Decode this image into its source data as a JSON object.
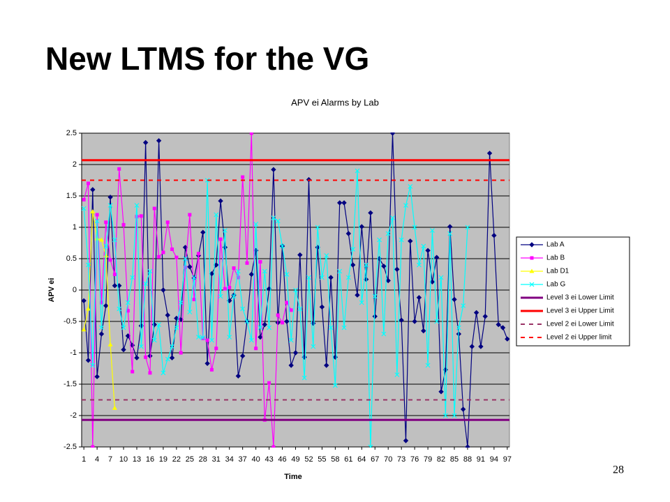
{
  "chart_data": {
    "type": "line",
    "slide_title": "New LTMS for the VG",
    "title": "APV ei Alarms by Lab",
    "xlabel": "Time",
    "ylabel": "APV ei",
    "page_number": "28",
    "categories": [
      1,
      null,
      null,
      4,
      null,
      null,
      7,
      null,
      null,
      10,
      null,
      null,
      13,
      null,
      null,
      16,
      null,
      null,
      19,
      null,
      null,
      22,
      null,
      null,
      25,
      null,
      null,
      28,
      null,
      null,
      31,
      null,
      null,
      34,
      null,
      null,
      37,
      null,
      null,
      40,
      null,
      null,
      43,
      null,
      null,
      46,
      null,
      null,
      49,
      null,
      null,
      52,
      null,
      null,
      55,
      null,
      null,
      58,
      null,
      null,
      61,
      null,
      null,
      64,
      null,
      null,
      67,
      null,
      null,
      70,
      null,
      null,
      73,
      null,
      null,
      76,
      null,
      null,
      79,
      null,
      null,
      82,
      null,
      null,
      85,
      null,
      null,
      88,
      null,
      null,
      91,
      null,
      null,
      94,
      null,
      null,
      97
    ],
    "ylim": [
      -2.5,
      2.5
    ],
    "yticks": [
      2.5,
      2,
      1.5,
      1,
      0.5,
      0,
      -0.5,
      -1,
      -1.5,
      -2,
      -2.5
    ],
    "grid": true,
    "legend": "right",
    "plot_background": "#c0c0c0",
    "series": [
      {
        "name": "Lab A",
        "color": "#000080",
        "marker": "diamond",
        "values": [
          -0.17,
          -1.12,
          1.6,
          -1.38,
          -0.7,
          -0.25,
          1.48,
          0.07,
          0.07,
          -0.95,
          -0.73,
          -0.88,
          -1.08,
          -0.57,
          2.35,
          -1.05,
          -0.55,
          2.38,
          0.0,
          -0.4,
          -1.08,
          -0.45,
          -0.47,
          0.68,
          0.37,
          0.19,
          0.55,
          0.92,
          -1.17,
          0.26,
          0.4,
          1.42,
          0.68,
          -0.17,
          -0.08,
          -1.37,
          -1.05,
          -0.5,
          0.25,
          0.63,
          -0.75,
          -0.55,
          0.02,
          1.92,
          -0.52,
          0.7,
          -0.5,
          -1.2,
          -1.0,
          0.56,
          -1.07,
          1.76,
          -0.53,
          0.68,
          -0.27,
          -1.2,
          0.2,
          -1.07,
          1.39,
          1.39,
          0.9,
          0.4,
          -0.08,
          1.01,
          0.17,
          1.23,
          -0.42,
          0.5,
          0.38,
          0.15,
          2.5,
          0.33,
          -0.48,
          -2.4,
          0.78,
          -0.5,
          -0.12,
          -0.65,
          0.63,
          0.13,
          0.52,
          -1.62,
          -1.27,
          1.01,
          -0.15,
          -0.7,
          -1.9,
          -2.5,
          -0.9,
          -0.36,
          -0.9,
          -0.42,
          2.18,
          0.87,
          -0.55,
          -0.6,
          -0.78
        ]
      },
      {
        "name": "Lab B",
        "color": "#ff00ff",
        "marker": "square",
        "values": [
          1.44,
          1.7,
          -2.5,
          1.2,
          -0.2,
          1.08,
          0.48,
          0.25,
          1.93,
          1.04,
          -0.33,
          -1.3,
          1.17,
          1.18,
          -1.07,
          -1.32,
          1.3,
          0.53,
          0.6,
          1.08,
          0.65,
          0.52,
          -1.0,
          0.36,
          1.2,
          -0.15,
          0.58,
          -0.77,
          -0.8,
          -1.27,
          -0.93,
          0.81,
          0.02,
          0.04,
          0.35,
          0.2,
          1.8,
          0.43,
          2.5,
          -0.93,
          0.45,
          -2.07,
          -1.48,
          -2.5,
          -0.4,
          -0.52,
          -0.2,
          -0.32,
          null,
          null,
          null,
          null,
          null,
          null,
          null,
          null,
          null,
          null,
          null,
          null,
          null,
          null,
          null,
          null,
          null,
          null,
          null,
          null,
          null,
          null,
          null,
          null,
          null,
          null,
          null,
          null,
          null,
          null,
          null,
          null,
          null,
          null,
          null,
          null,
          null,
          null,
          null,
          null,
          null,
          null,
          null,
          null,
          null,
          null,
          null,
          null,
          null
        ]
      },
      {
        "name": "Lab D1",
        "color": "#ffff00",
        "marker": "triangle",
        "values": [
          -0.63,
          -0.3,
          1.25,
          0.82,
          0.8,
          0.55,
          -0.87,
          -1.88,
          null,
          null,
          null,
          null,
          null,
          null,
          null,
          null,
          null,
          null,
          null,
          null,
          null,
          null,
          null,
          null,
          null,
          null,
          null,
          null,
          null,
          null,
          null,
          null,
          null,
          null,
          null,
          null,
          null,
          null,
          null,
          null,
          null,
          null,
          null,
          null,
          null,
          null,
          null,
          null,
          null,
          null,
          null,
          null,
          null,
          null,
          null,
          null,
          null,
          null,
          null,
          null,
          null,
          null,
          null,
          null,
          null,
          null,
          null,
          null,
          null,
          null,
          null,
          null,
          null,
          null,
          null,
          null,
          null,
          null,
          null,
          null,
          null,
          null,
          null,
          null,
          null,
          null,
          null,
          null,
          null,
          null,
          null,
          null,
          null,
          null,
          null,
          null,
          null
        ]
      },
      {
        "name": "Lab G",
        "color": "#00ffff",
        "marker": "x",
        "values": [
          1.3,
          0.4,
          -1.2,
          1.1,
          -0.6,
          0.7,
          1.35,
          0.8,
          -0.3,
          -0.6,
          -0.2,
          0.2,
          1.35,
          -0.9,
          0.1,
          0.3,
          -0.8,
          -0.55,
          -1.32,
          -1.1,
          -0.9,
          -0.6,
          -0.2,
          0.5,
          -0.35,
          0.2,
          -0.75,
          -0.76,
          1.75,
          -0.8,
          1.2,
          -0.1,
          0.95,
          -0.75,
          -0.1,
          0.3,
          -0.3,
          -0.5,
          -0.8,
          1.05,
          -0.6,
          0.3,
          -0.6,
          1.15,
          1.1,
          0.7,
          0.25,
          -0.8,
          0.0,
          -0.3,
          -1.4,
          0.2,
          -0.9,
          1.0,
          0.2,
          0.55,
          -0.6,
          -1.52,
          0.3,
          -0.6,
          0.2,
          0.65,
          1.9,
          -0.2,
          0.4,
          -2.5,
          -0.1,
          0.8,
          -0.7,
          0.9,
          1.15,
          -1.35,
          0.8,
          1.35,
          1.65,
          1.0,
          0.4,
          0.7,
          -1.2,
          0.95,
          -0.5,
          0.2,
          -2.0,
          0.9,
          -2.0,
          -0.6,
          -0.25,
          1.0,
          null,
          null,
          null,
          null,
          null,
          null,
          null,
          null,
          null
        ]
      },
      {
        "name": "Level 3 ei Lower Limit",
        "color": "#800080",
        "dash": false,
        "value": -2.07
      },
      {
        "name": "Level 3 ei Upper Limit",
        "color": "#ff0000",
        "dash": false,
        "value": 2.07
      },
      {
        "name": "Level 2 ei Lower Limit",
        "color": "#993366",
        "dash": true,
        "value": -1.75
      },
      {
        "name": "Level 2 ei Upper limit",
        "color": "#ff0000",
        "dash": true,
        "value": 1.75
      }
    ]
  }
}
